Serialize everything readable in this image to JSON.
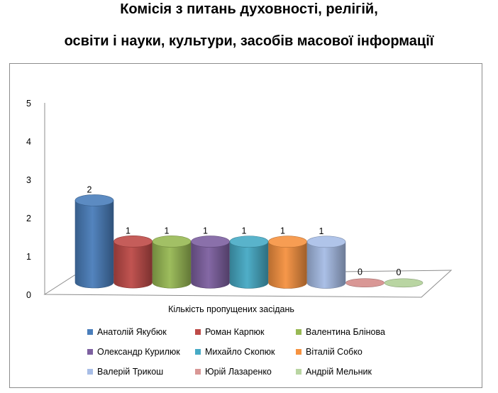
{
  "chart_data": {
    "type": "bar",
    "title_lines": [
      "Комісія з питань духовності, релігій,",
      "освіти і науки, культури, засобів масової інформації"
    ],
    "xlabel": "Кількість пропущених засідань",
    "ylabel": "",
    "ylim": [
      0,
      5
    ],
    "yticks": [
      "0",
      "1",
      "2",
      "3",
      "4",
      "5"
    ],
    "grid": false,
    "legend_position": "bottom",
    "series": [
      {
        "name": "Анатолій Якубюк",
        "value": 2,
        "label": "2",
        "color": "#4a7ebb"
      },
      {
        "name": "Роман Карпюк",
        "value": 1,
        "label": "1",
        "color": "#be4b48"
      },
      {
        "name": "Валентина Блінова",
        "value": 1,
        "label": "1",
        "color": "#98b954"
      },
      {
        "name": "Олександр Курилюк",
        "value": 1,
        "label": "1",
        "color": "#7d60a0"
      },
      {
        "name": "Михайло Скопюк",
        "value": 1,
        "label": "1",
        "color": "#46aac5"
      },
      {
        "name": "Віталій Собко",
        "value": 1,
        "label": "1",
        "color": "#f69240"
      },
      {
        "name": "Валерій Трикош",
        "value": 1,
        "label": "1",
        "color": "#a7bde6"
      },
      {
        "name": "Юрій Лазаренко",
        "value": 0,
        "label": "0",
        "color": "#d99795"
      },
      {
        "name": "Андрій Мельник",
        "value": 0,
        "label": "0",
        "color": "#b9d5a2"
      }
    ]
  }
}
